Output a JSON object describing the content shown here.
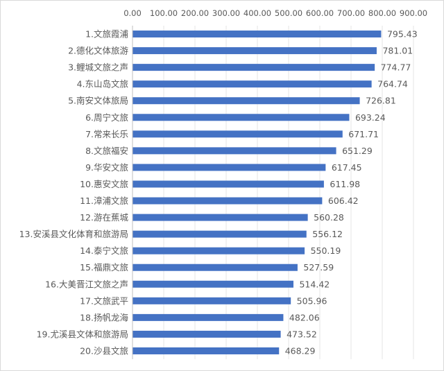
{
  "chart_data": {
    "type": "bar",
    "orientation": "horizontal",
    "categories": [
      "1.文旅霞浦",
      "2.德化文体旅游",
      "3.鲤城文旅之声",
      "4.东山岛文旅",
      "5.南安文体旅局",
      "6.周宁文旅",
      "7.常来长乐",
      "8.文旅福安",
      "9.华安文旅",
      "10.惠安文旅",
      "11.漳浦文旅",
      "12.游在蕉城",
      "13.安溪县文化体育和旅游局",
      "14.泰宁文旅",
      "15.福鼎文旅",
      "16.大美晋江文旅之声",
      "17.文旅武平",
      "18.扬帆龙海",
      "19.尤溪县文体和旅游局",
      "20.沙县文旅"
    ],
    "values": [
      795.43,
      781.01,
      774.77,
      764.74,
      726.81,
      693.24,
      671.71,
      651.29,
      617.45,
      611.98,
      606.42,
      560.28,
      556.12,
      550.19,
      527.59,
      514.42,
      505.96,
      482.06,
      473.52,
      468.29
    ],
    "value_labels": [
      "795.43",
      "781.01",
      "774.77",
      "764.74",
      "726.81",
      "693.24",
      "671.71",
      "651.29",
      "617.45",
      "611.98",
      "606.42",
      "560.28",
      "556.12",
      "550.19",
      "527.59",
      "514.42",
      "505.96",
      "482.06",
      "473.52",
      "468.29"
    ],
    "xticks": [
      "0.00",
      "100.00",
      "200.00",
      "300.00",
      "400.00",
      "500.00",
      "600.00",
      "700.00",
      "800.00",
      "900.00"
    ],
    "xlim": [
      0,
      900
    ],
    "x_axis_position": "top",
    "grid": true,
    "bar_color": "#4472c4"
  }
}
